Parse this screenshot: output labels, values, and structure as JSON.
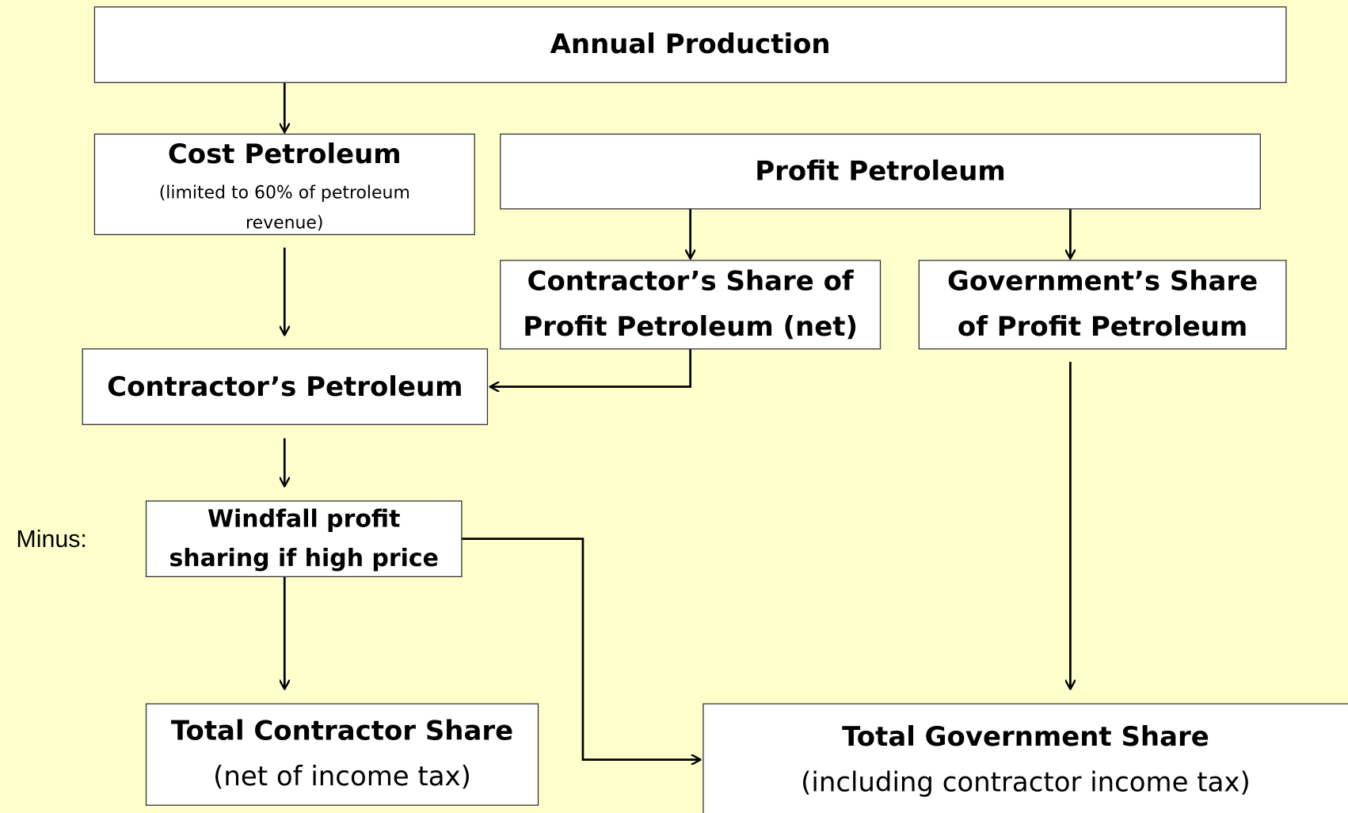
{
  "side_label": "Minus:",
  "nodes": [
    {
      "lines": [
        "Annual Production"
      ]
    },
    {
      "lines": [
        "Cost Petroleum",
        "(limited to 60% of petroleum",
        "revenue)"
      ]
    },
    {
      "lines": [
        "Profit Petroleum"
      ]
    },
    {
      "lines": [
        "Contractor’s Share of",
        "Profit Petroleum (net)"
      ]
    },
    {
      "lines": [
        "Government’s Share",
        "of Profit Petroleum"
      ]
    },
    {
      "lines": [
        "Contractor’s Petroleum"
      ]
    },
    {
      "lines": [
        "Windfall profit",
        "sharing if high price"
      ]
    },
    {
      "lines": [
        "Total Contractor Share",
        "(net of income tax)"
      ]
    },
    {
      "lines": [
        "Total Government Share",
        "(including contractor income tax)"
      ]
    }
  ]
}
